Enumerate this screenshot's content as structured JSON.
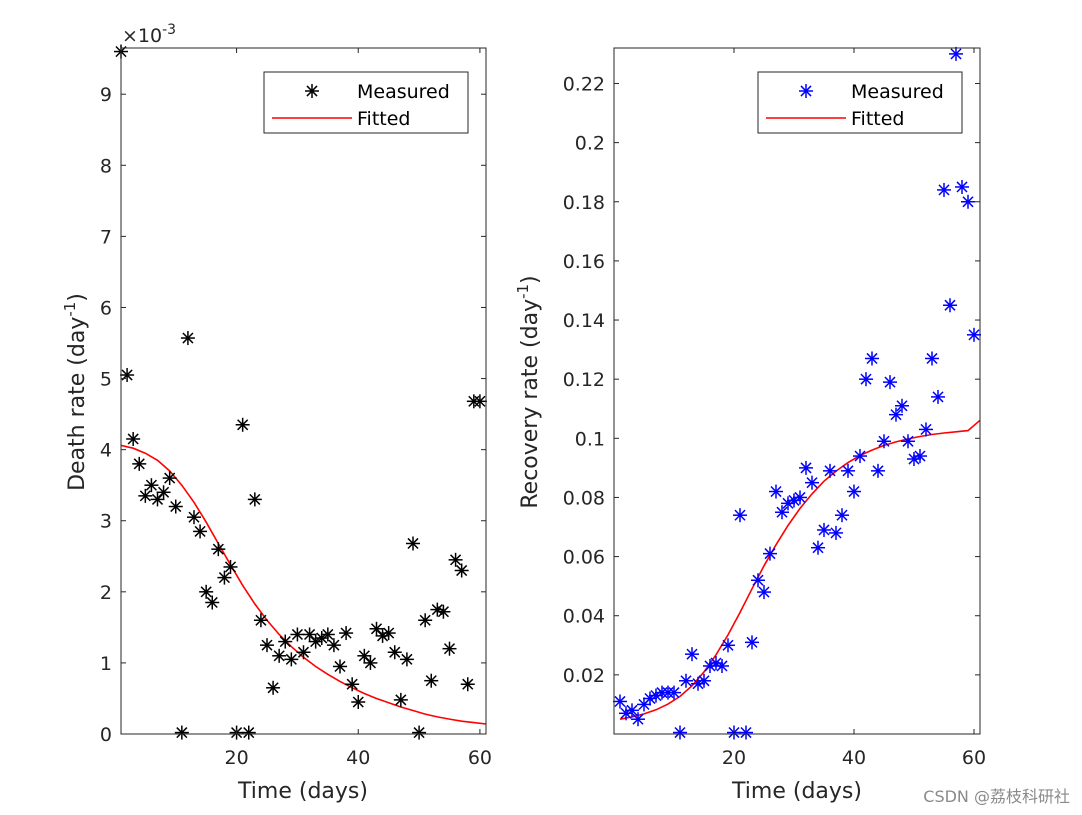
{
  "colors": {
    "axis": "#262626",
    "fit": "#ff0000",
    "measured_left": "#000000",
    "measured_right": "#0000ff"
  },
  "watermark": "CSDN @荔枝科研社",
  "chart_data": [
    {
      "type": "scatter+line",
      "xlabel": "Time (days)",
      "ylabel_main": "Death rate (day",
      "ylabel_sup": "-1",
      "ylabel_end": ")",
      "exponent_label": "×10",
      "exponent_sup": "-3",
      "xlim": [
        1,
        61
      ],
      "ylim": [
        0,
        9.65
      ],
      "xticks": [
        20,
        40,
        60
      ],
      "xtick_labels": [
        "20",
        "40",
        "60"
      ],
      "yticks": [
        0,
        1,
        2,
        3,
        4,
        5,
        6,
        7,
        8,
        9
      ],
      "ytick_labels": [
        "0",
        "1",
        "2",
        "3",
        "4",
        "5",
        "6",
        "7",
        "8",
        "9"
      ],
      "legend": {
        "position": "top-right",
        "entries": [
          "Measured",
          "Fitted"
        ]
      },
      "series": [
        {
          "name": "Measured",
          "style": "marker",
          "marker": "*",
          "color": "#000000",
          "x": [
            1,
            2,
            3,
            4,
            5,
            6,
            7,
            8,
            9,
            10,
            11,
            12,
            13,
            14,
            15,
            16,
            17,
            18,
            19,
            20,
            21,
            22,
            23,
            24,
            25,
            26,
            27,
            28,
            29,
            30,
            31,
            32,
            33,
            34,
            35,
            36,
            37,
            38,
            39,
            40,
            41,
            42,
            43,
            44,
            45,
            46,
            47,
            48,
            49,
            50,
            51,
            52,
            53,
            54,
            55,
            56,
            57,
            58,
            59,
            60
          ],
          "y": [
            9.6,
            5.05,
            4.15,
            3.8,
            3.35,
            3.5,
            3.3,
            3.4,
            3.6,
            3.2,
            0.02,
            5.57,
            3.05,
            2.85,
            2.0,
            1.85,
            2.6,
            2.2,
            2.35,
            0.02,
            4.35,
            0.02,
            3.3,
            1.6,
            1.25,
            0.65,
            1.1,
            1.3,
            1.05,
            1.4,
            1.15,
            1.4,
            1.3,
            1.35,
            1.4,
            1.25,
            0.95,
            1.42,
            0.7,
            0.45,
            1.1,
            1.0,
            1.48,
            1.38,
            1.42,
            1.15,
            0.48,
            1.05,
            2.68,
            0.02,
            1.6,
            0.75,
            1.75,
            1.72,
            1.2,
            2.45,
            2.3,
            0.7,
            4.68,
            4.68
          ]
        },
        {
          "name": "Fitted",
          "style": "line",
          "color": "#ff0000",
          "x": [
            1,
            3,
            5,
            7,
            9,
            11,
            13,
            15,
            17,
            19,
            21,
            23,
            25,
            27,
            29,
            31,
            33,
            35,
            37,
            39,
            41,
            43,
            45,
            47,
            49,
            51,
            53,
            55,
            57,
            59,
            61
          ],
          "y": [
            4.06,
            4.02,
            3.95,
            3.85,
            3.7,
            3.5,
            3.26,
            2.98,
            2.68,
            2.38,
            2.09,
            1.83,
            1.6,
            1.4,
            1.23,
            1.08,
            0.95,
            0.84,
            0.74,
            0.65,
            0.57,
            0.5,
            0.44,
            0.38,
            0.33,
            0.28,
            0.24,
            0.21,
            0.18,
            0.16,
            0.14
          ]
        }
      ]
    },
    {
      "type": "scatter+line",
      "xlabel": "Time (days)",
      "ylabel_main": "Recovery rate (day",
      "ylabel_sup": "-1",
      "ylabel_end": ")",
      "xlim": [
        0,
        61
      ],
      "ylim": [
        0,
        0.232
      ],
      "xticks": [
        20,
        40,
        60
      ],
      "xtick_labels": [
        "20",
        "40",
        "60"
      ],
      "yticks": [
        0.02,
        0.04,
        0.06,
        0.08,
        0.1,
        0.12,
        0.14,
        0.16,
        0.18,
        0.2,
        0.22
      ],
      "ytick_labels": [
        "0.02",
        "0.04",
        "0.06",
        "0.08",
        "0.1",
        "0.12",
        "0.14",
        "0.16",
        "0.18",
        "0.2",
        "0.22"
      ],
      "legend": {
        "position": "top-right",
        "entries": [
          "Measured",
          "Fitted"
        ]
      },
      "series": [
        {
          "name": "Measured",
          "style": "marker",
          "marker": "*",
          "color": "#0000ff",
          "x": [
            1,
            2,
            3,
            4,
            5,
            6,
            7,
            8,
            9,
            10,
            11,
            12,
            13,
            14,
            15,
            16,
            17,
            18,
            19,
            20,
            21,
            22,
            23,
            24,
            25,
            26,
            27,
            28,
            29,
            30,
            31,
            32,
            33,
            34,
            35,
            36,
            37,
            38,
            39,
            40,
            41,
            42,
            43,
            44,
            45,
            46,
            47,
            48,
            49,
            50,
            51,
            52,
            53,
            54,
            55,
            56,
            57,
            58,
            59,
            60
          ],
          "y": [
            0.011,
            0.007,
            0.008,
            0.005,
            0.01,
            0.012,
            0.013,
            0.014,
            0.014,
            0.014,
            0.0005,
            0.018,
            0.027,
            0.017,
            0.018,
            0.023,
            0.024,
            0.023,
            0.03,
            0.0005,
            0.074,
            0.0005,
            0.031,
            0.052,
            0.048,
            0.061,
            0.082,
            0.075,
            0.078,
            0.079,
            0.08,
            0.09,
            0.085,
            0.063,
            0.069,
            0.089,
            0.068,
            0.074,
            0.089,
            0.082,
            0.094,
            0.12,
            0.127,
            0.089,
            0.099,
            0.119,
            0.108,
            0.111,
            0.099,
            0.093,
            0.094,
            0.103,
            0.127,
            0.114,
            0.184,
            0.145,
            0.23,
            0.185,
            0.18,
            0.135
          ]
        },
        {
          "name": "Fitted",
          "style": "line",
          "color": "#ff0000",
          "x": [
            1,
            3,
            5,
            7,
            9,
            11,
            13,
            15,
            17,
            19,
            21,
            23,
            25,
            27,
            29,
            31,
            33,
            35,
            37,
            39,
            41,
            43,
            45,
            47,
            49,
            51,
            53,
            55,
            57,
            59,
            61
          ],
          "y": [
            0.005,
            0.0058,
            0.0068,
            0.0082,
            0.0101,
            0.0127,
            0.0163,
            0.021,
            0.0268,
            0.0335,
            0.0411,
            0.0491,
            0.0569,
            0.064,
            0.0705,
            0.0763,
            0.0812,
            0.0855,
            0.0889,
            0.0918,
            0.0942,
            0.096,
            0.0976,
            0.0988,
            0.0998,
            0.1006,
            0.1013,
            0.1018,
            0.1022,
            0.1026,
            0.1061
          ]
        }
      ]
    }
  ]
}
